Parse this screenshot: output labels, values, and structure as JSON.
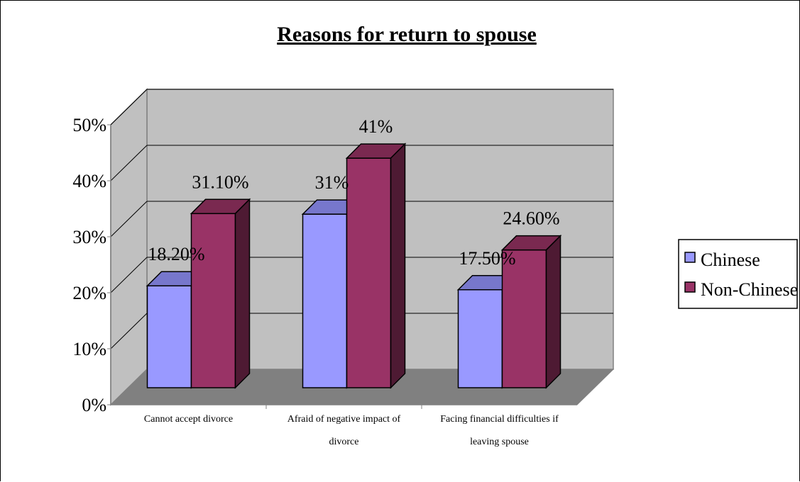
{
  "chart_data": {
    "type": "bar",
    "title": "Reasons for return to spouse",
    "categories": [
      [
        "Cannot accept divorce"
      ],
      [
        "Afraid of negative impact of",
        "divorce"
      ],
      [
        "Facing financial difficulties if",
        "leaving spouse"
      ]
    ],
    "ylim": [
      0,
      50
    ],
    "yticks": [
      "0%",
      "10%",
      "20%",
      "30%",
      "40%",
      "50%"
    ],
    "series": [
      {
        "name": "Chinese",
        "values": [
          18.2,
          31,
          17.5
        ],
        "labels": [
          "18.20%",
          "31%",
          "17.50%"
        ],
        "color": "#9999ff",
        "top_color": "#7777cc",
        "side_color": "#5c5caa"
      },
      {
        "name": "Non-Chinese",
        "values": [
          31.1,
          41,
          24.6
        ],
        "labels": [
          "31.10%",
          "41%",
          "24.60%"
        ],
        "color": "#993366",
        "top_color": "#7a2950",
        "side_color": "#4e1a33"
      }
    ],
    "legend_position": "right",
    "grid": true,
    "style": "3d-clustered-column"
  }
}
